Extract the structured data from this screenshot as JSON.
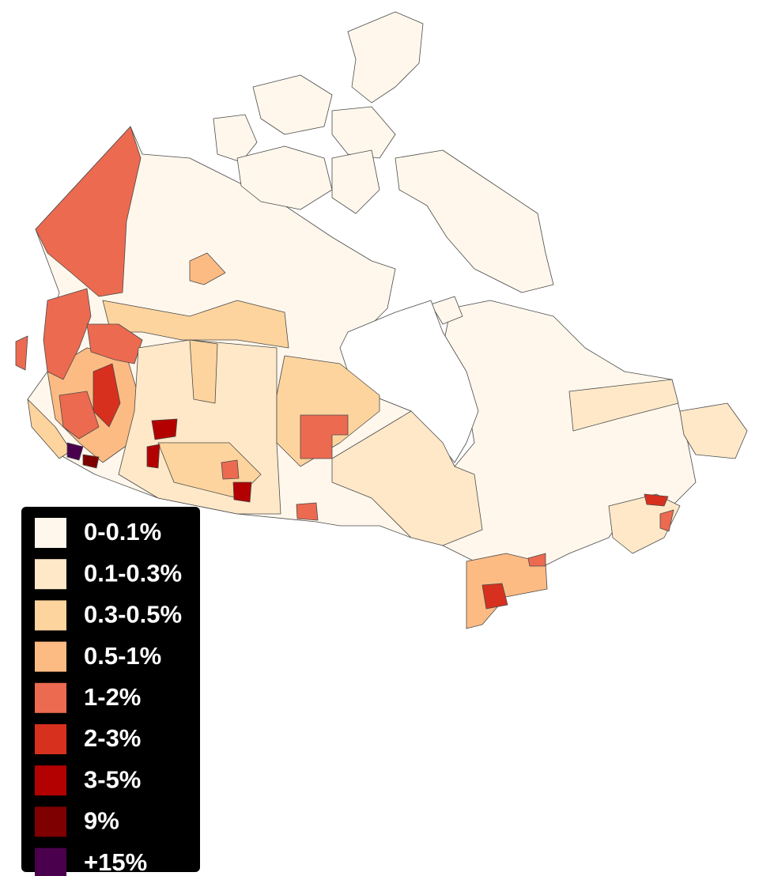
{
  "legend": {
    "items": [
      {
        "label": "0-0.1%",
        "color": "#fff7ec"
      },
      {
        "label": "0.1-0.3%",
        "color": "#fee8c8"
      },
      {
        "label": "0.3-0.5%",
        "color": "#fdd49e"
      },
      {
        "label": "0.5-1%",
        "color": "#fdbb84"
      },
      {
        "label": "1-2%",
        "color": "#ec6a50"
      },
      {
        "label": "2-3%",
        "color": "#d7301f"
      },
      {
        "label": "3-5%",
        "color": "#b30000"
      },
      {
        "label": "9%",
        "color": "#7f0000"
      },
      {
        "label": "+15%",
        "color": "#4a004d"
      }
    ]
  }
}
